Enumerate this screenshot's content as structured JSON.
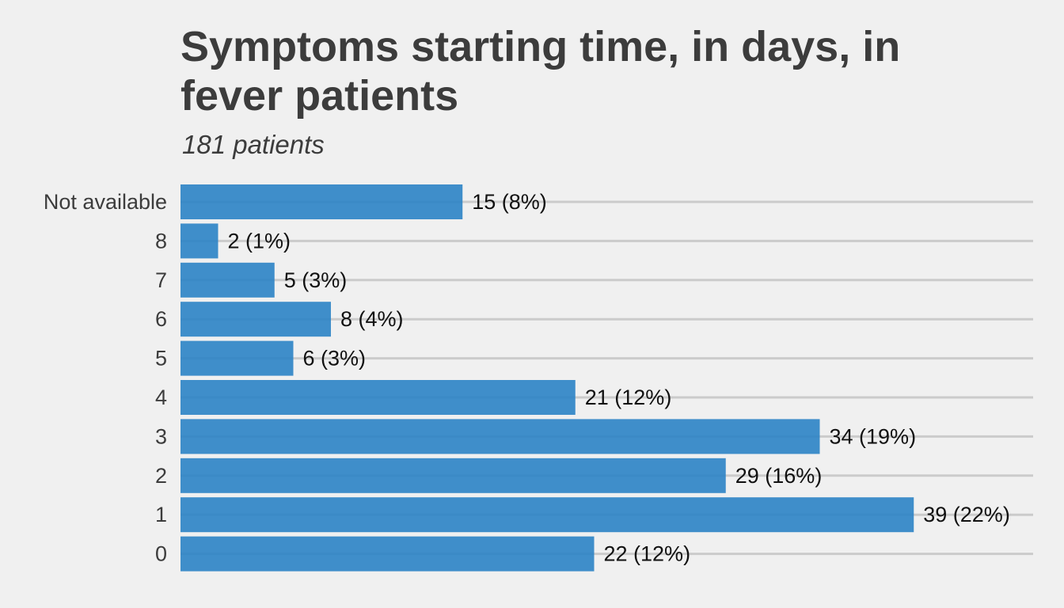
{
  "chart_data": {
    "type": "bar",
    "orientation": "horizontal",
    "title": "Symptoms starting time, in days, in fever patients",
    "subtitle": "181 patients",
    "categories": [
      "Not available",
      "8",
      "7",
      "6",
      "5",
      "4",
      "3",
      "2",
      "1",
      "0"
    ],
    "values": [
      15,
      2,
      5,
      8,
      6,
      21,
      34,
      29,
      39,
      22
    ],
    "data_labels": [
      "15 (8%)",
      "2 (1%)",
      "5 (3%)",
      "8 (4%)",
      "6 (3%)",
      "21 (12%)",
      "34 (19%)",
      "29 (16%)",
      "39 (22%)",
      "22 (12%)"
    ],
    "xlim": [
      0,
      45
    ],
    "grid": true,
    "bar_color": "#2b83c5",
    "grid_color": "#cbcbcb"
  }
}
